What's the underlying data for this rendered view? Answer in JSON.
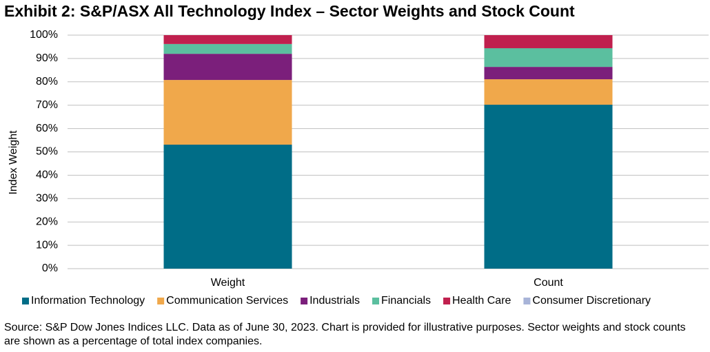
{
  "chart_data": {
    "type": "stacked_bar",
    "title": "Exhibit 2: S&P/ASX All Technology Index – Sector Weights and Stock Count",
    "ylabel": "Index Weight",
    "categories": [
      "Weight",
      "Count"
    ],
    "series": [
      {
        "name": "Information Technology",
        "color": "#006d87",
        "values": [
          53.1,
          70.2
        ]
      },
      {
        "name": "Communication Services",
        "color": "#f0a84b",
        "values": [
          27.7,
          10.9
        ]
      },
      {
        "name": "Industrials",
        "color": "#7b1f7b",
        "values": [
          11.2,
          5.3
        ]
      },
      {
        "name": "Financials",
        "color": "#5bbf9f",
        "values": [
          4.2,
          8.0
        ]
      },
      {
        "name": "Health Care",
        "color": "#c0204e",
        "values": [
          3.8,
          5.6
        ]
      },
      {
        "name": "Consumer Discretionary",
        "color": "#a8b4d8",
        "values": [
          0,
          0
        ]
      }
    ],
    "ylim": [
      0,
      100
    ],
    "yticks": [
      {
        "value": 0,
        "label": "0%"
      },
      {
        "value": 10,
        "label": "10%"
      },
      {
        "value": 20,
        "label": "20%"
      },
      {
        "value": 30,
        "label": "30%"
      },
      {
        "value": 40,
        "label": "40%"
      },
      {
        "value": 50,
        "label": "50%"
      },
      {
        "value": 60,
        "label": "60%"
      },
      {
        "value": 70,
        "label": "70%"
      },
      {
        "value": 80,
        "label": "80%"
      },
      {
        "value": 90,
        "label": "90%"
      },
      {
        "value": 100,
        "label": "100%"
      }
    ],
    "grid": true,
    "legend": "bottom",
    "source": "Source: S&P Dow Jones Indices LLC. Data as of June 30, 2023. Chart is provided for illustrative purposes. Sector weights and stock counts are shown as a percentage of total index companies."
  }
}
